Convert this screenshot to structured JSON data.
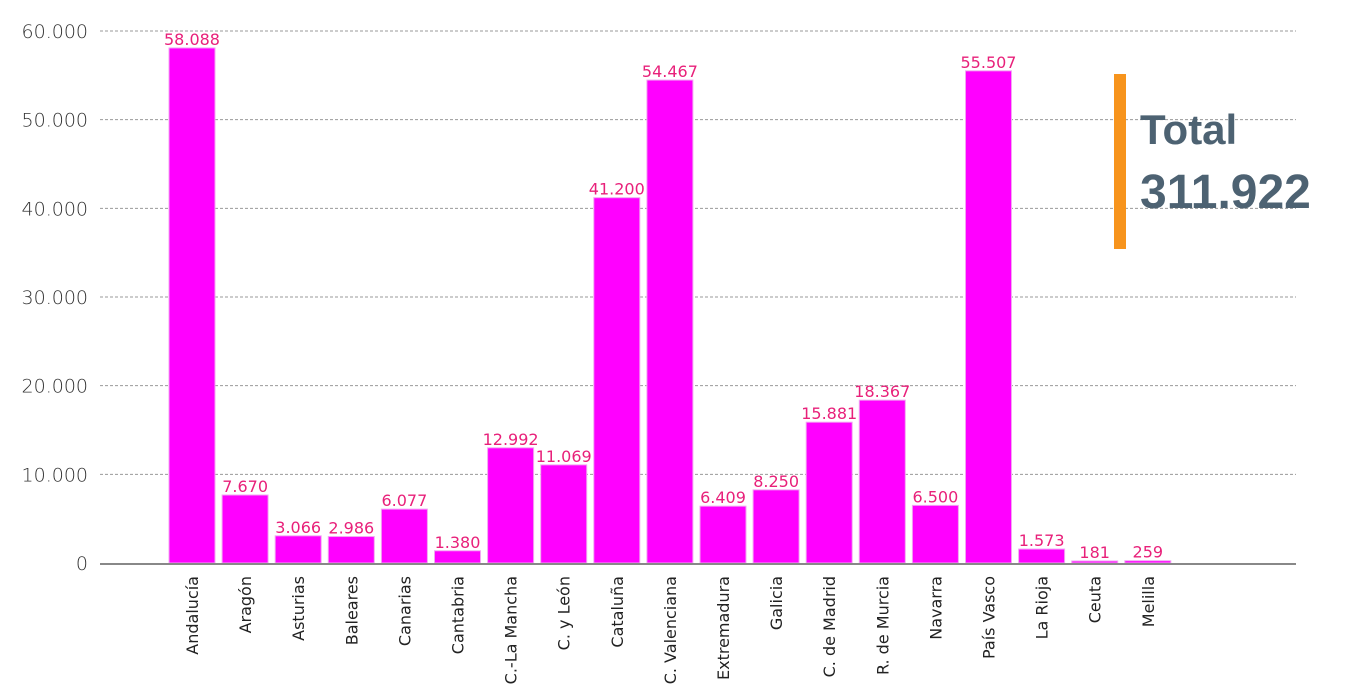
{
  "chart_data": {
    "type": "bar",
    "categories": [
      "Andalucía",
      "Aragón",
      "Asturias",
      "Baleares",
      "Canarias",
      "Cantabria",
      "C.-La Mancha",
      "C. y León",
      "Cataluña",
      "C. Valenciana",
      "Extremadura",
      "Galicia",
      "C. de Madrid",
      "R. de Murcia",
      "Navarra",
      "País Vasco",
      "La Rioja",
      "Ceuta",
      "Melilla"
    ],
    "values": [
      58088,
      7670,
      3066,
      2986,
      6077,
      1380,
      12992,
      11069,
      41200,
      54467,
      6409,
      8250,
      15881,
      18367,
      6500,
      55507,
      1573,
      181,
      259
    ],
    "value_labels": [
      "58.088",
      "7.670",
      "3.066",
      "2.986",
      "6.077",
      "1.380",
      "12.992",
      "11.069",
      "41.200",
      "54.467",
      "6.409",
      "8.250",
      "15.881",
      "18.367",
      "6.500",
      "55.507",
      "1.573",
      "181",
      "259"
    ],
    "ylim": [
      0,
      60000
    ],
    "yticks": [
      0,
      10000,
      20000,
      30000,
      40000,
      50000,
      60000
    ],
    "ytick_labels": [
      "0",
      "10.000",
      "20.000",
      "30.000",
      "40.000",
      "50.000",
      "60.000"
    ],
    "grid": true,
    "title": "",
    "xlabel": "",
    "ylabel": "",
    "colors": {
      "bar": "#ff00ff",
      "label": "#e8207a",
      "grid": "#999999",
      "axis": "#888888"
    }
  },
  "total": {
    "label": "Total",
    "value": "311.922",
    "text_color": "#4d6272",
    "accent_color": "#f7941d"
  }
}
